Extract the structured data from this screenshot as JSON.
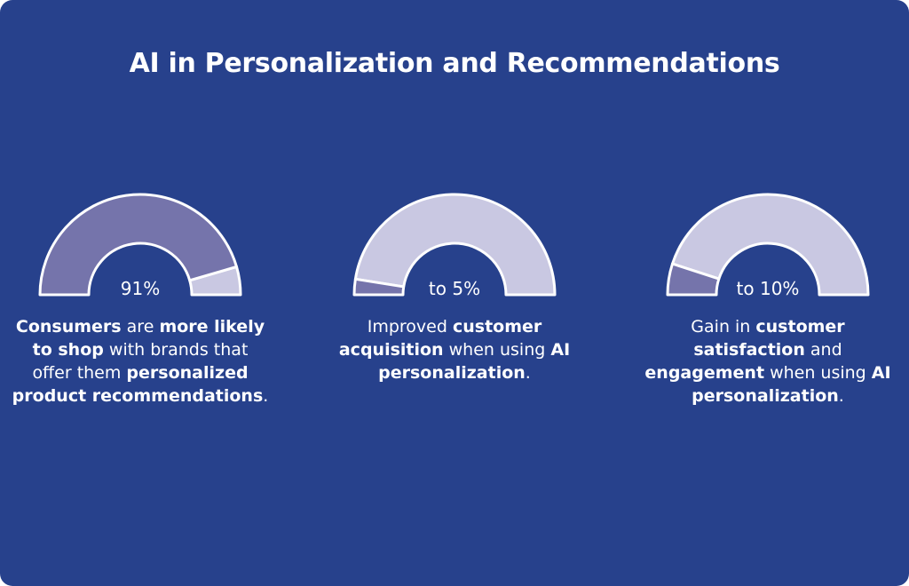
{
  "title": "AI in Personalization and Recommendations",
  "colors": {
    "background": "#27418c",
    "fill": "#7574ab",
    "track": "#c9c8e2",
    "outline": "#ffffff"
  },
  "chart_data": [
    {
      "type": "gauge",
      "value": 91,
      "max": 100,
      "value_label": "91%",
      "caption_parts": [
        {
          "text": "Consumers",
          "bold": true
        },
        {
          "text": " are ",
          "bold": false
        },
        {
          "text": "more likely to shop",
          "bold": true
        },
        {
          "text": " with brands that offer them ",
          "bold": false
        },
        {
          "text": "personalized product recommendations",
          "bold": true
        },
        {
          "text": ".",
          "bold": false
        }
      ]
    },
    {
      "type": "gauge",
      "value": 5,
      "max": 100,
      "value_label": "to 5%",
      "caption_parts": [
        {
          "text": "Improved ",
          "bold": false
        },
        {
          "text": "customer acquisition",
          "bold": true
        },
        {
          "text": " when using ",
          "bold": false
        },
        {
          "text": "AI personalization",
          "bold": true
        },
        {
          "text": ".",
          "bold": false
        }
      ]
    },
    {
      "type": "gauge",
      "value": 10,
      "max": 100,
      "value_label": "to 10%",
      "caption_parts": [
        {
          "text": "Gain in ",
          "bold": false
        },
        {
          "text": "customer satisfaction",
          "bold": true
        },
        {
          "text": " and ",
          "bold": false
        },
        {
          "text": "engagement",
          "bold": true
        },
        {
          "text": " when using ",
          "bold": false
        },
        {
          "text": "AI personalization",
          "bold": true
        },
        {
          "text": ".",
          "bold": false
        }
      ]
    }
  ]
}
